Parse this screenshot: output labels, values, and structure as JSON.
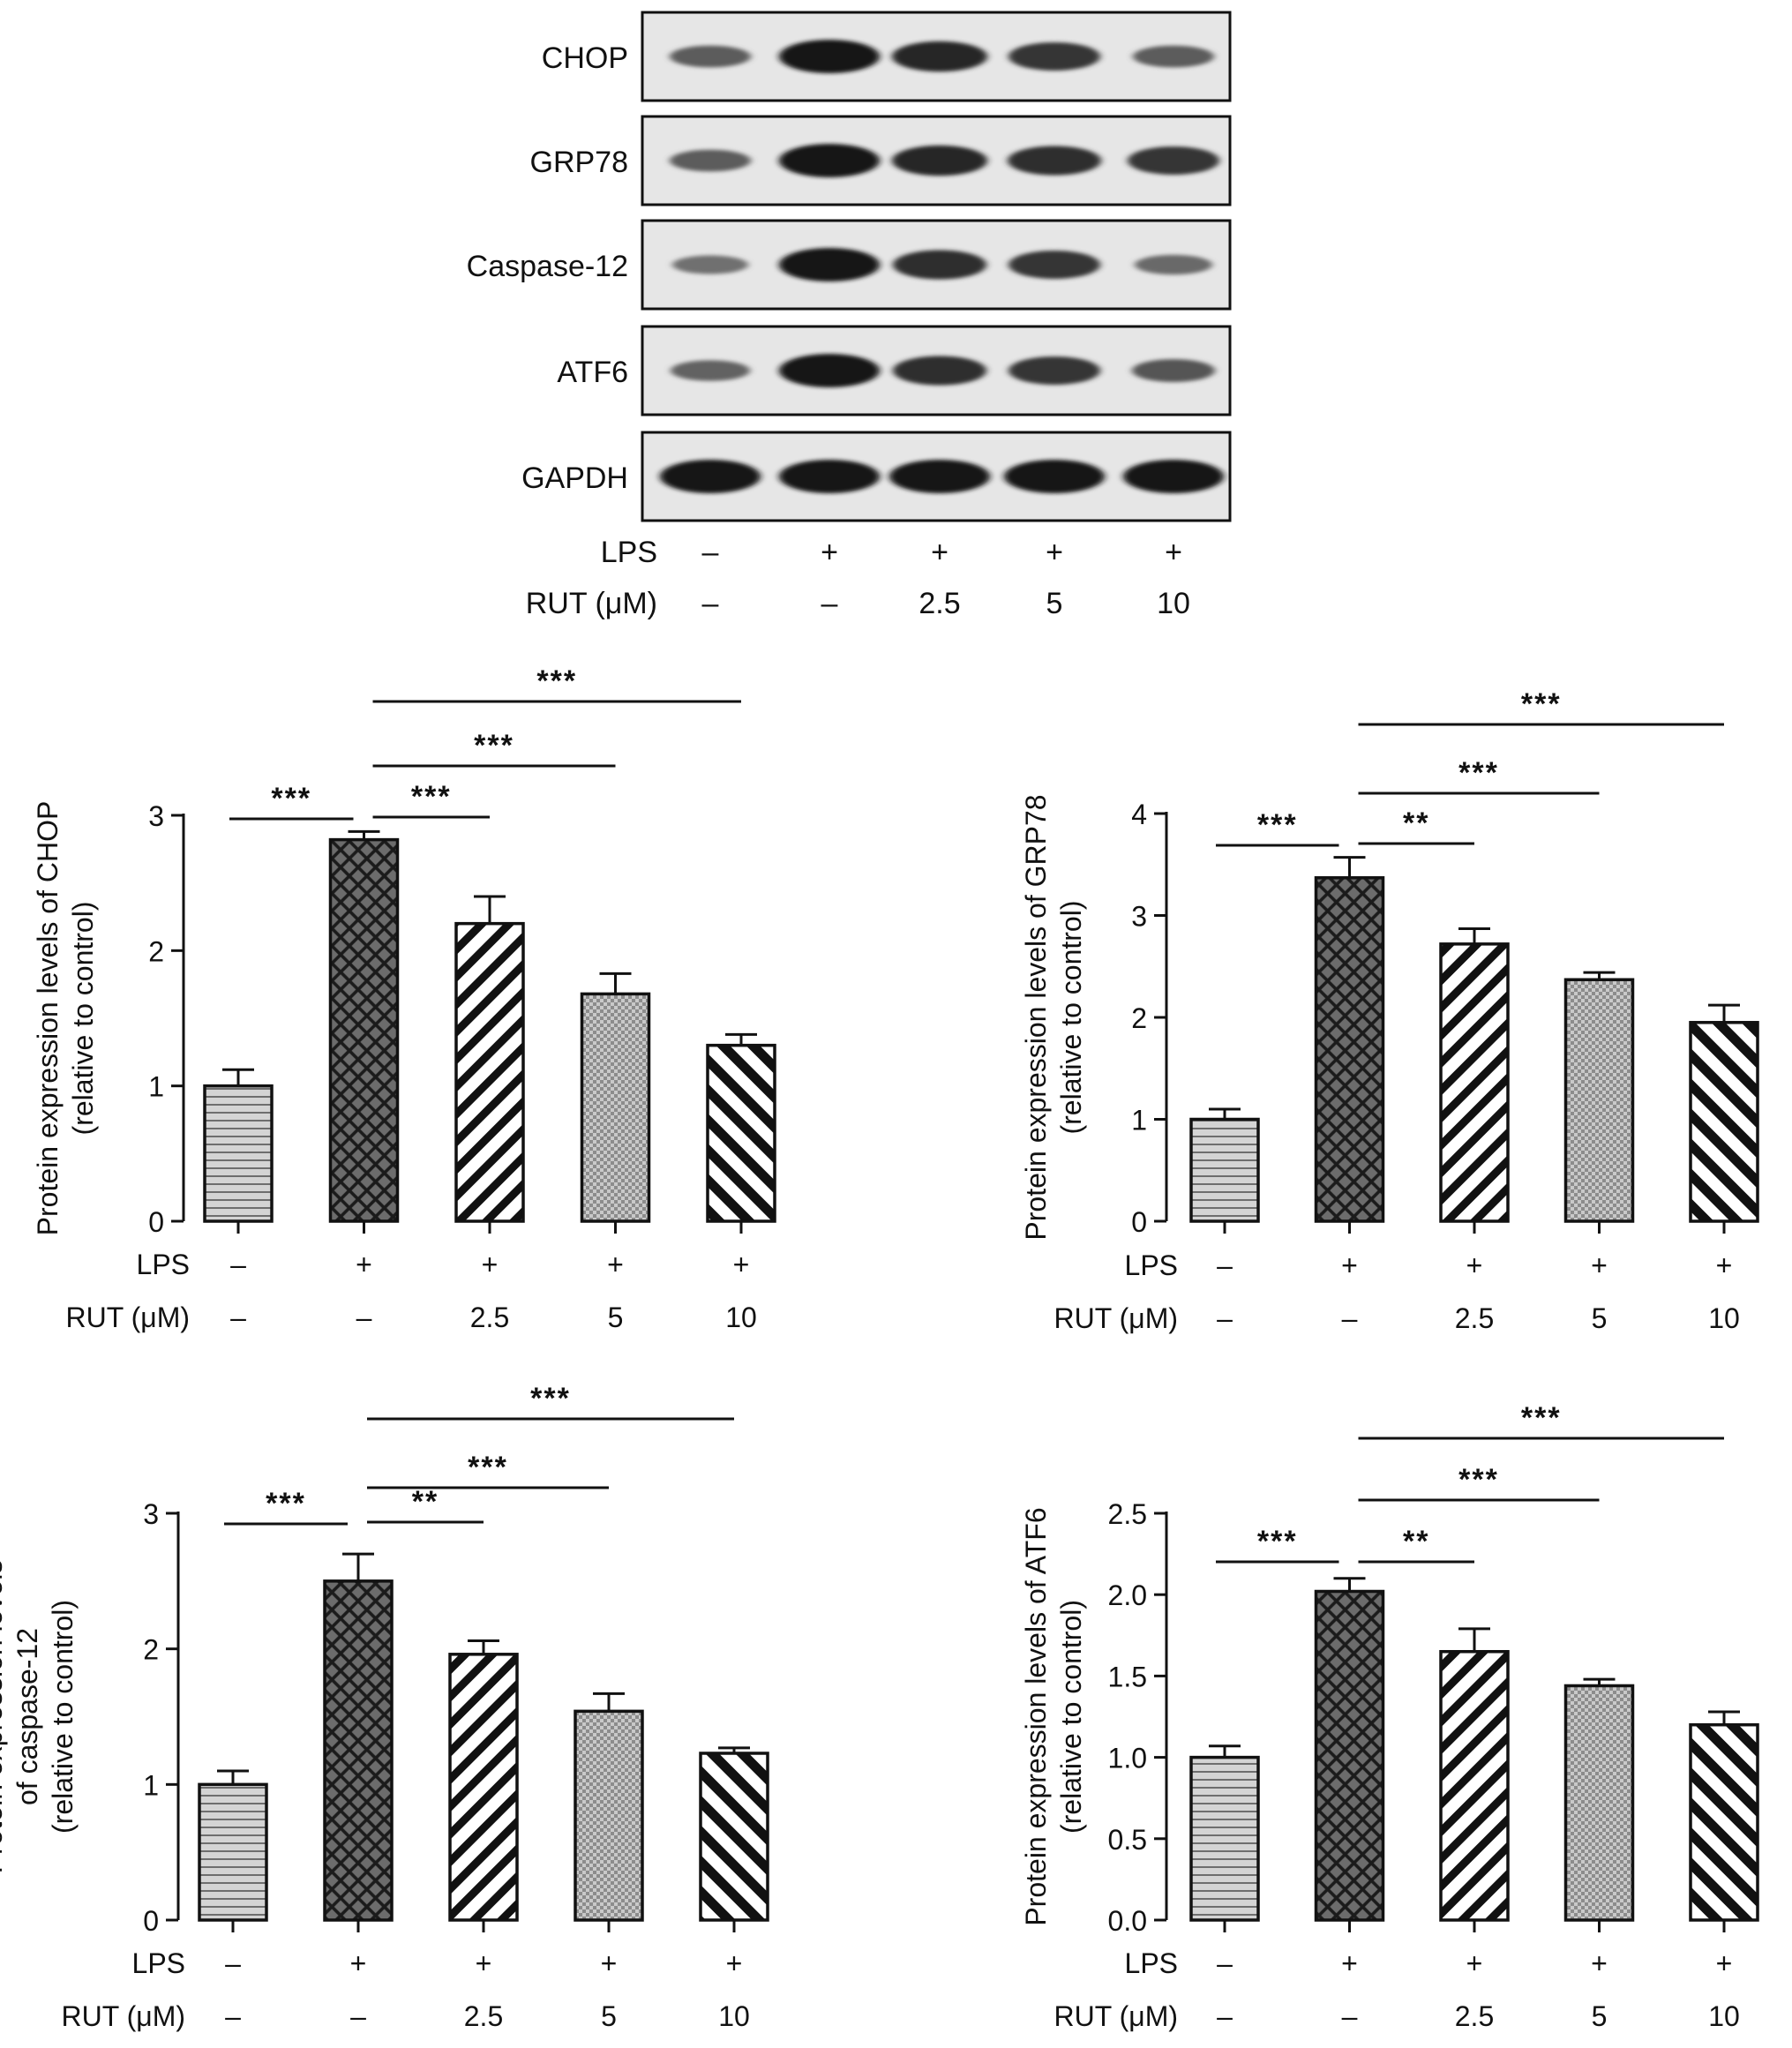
{
  "blot": {
    "rows": [
      {
        "label": "CHOP",
        "intensity": [
          0.45,
          1.0,
          0.85,
          0.75,
          0.45
        ]
      },
      {
        "label": "GRP78",
        "intensity": [
          0.45,
          1.0,
          0.85,
          0.8,
          0.75
        ]
      },
      {
        "label": "Caspase-12",
        "intensity": [
          0.3,
          1.0,
          0.8,
          0.75,
          0.35
        ]
      },
      {
        "label": "ATF6",
        "intensity": [
          0.4,
          1.0,
          0.8,
          0.75,
          0.5
        ]
      },
      {
        "label": "GAPDH",
        "intensity": [
          1.0,
          1.0,
          1.0,
          1.0,
          1.0
        ]
      }
    ],
    "lps_label": "LPS",
    "rut_label": "RUT (μM)",
    "lps": [
      "–",
      "+",
      "+",
      "+",
      "+"
    ],
    "rut": [
      "–",
      "–",
      "2.5",
      "5",
      "10"
    ]
  },
  "chart_data": [
    {
      "type": "bar",
      "ylabel": [
        "Protein expression levels of CHOP",
        "(relative to control)"
      ],
      "ylim": [
        0,
        3
      ],
      "yticks": [
        "0",
        "1",
        "2",
        "3"
      ],
      "values": [
        1.0,
        2.82,
        2.2,
        1.68,
        1.3
      ],
      "errors": [
        0.12,
        0.06,
        0.2,
        0.15,
        0.08
      ],
      "lps_label": "LPS",
      "rut_label": "RUT (μM)",
      "lps": [
        "–",
        "+",
        "+",
        "+",
        "+"
      ],
      "rut": [
        "–",
        "–",
        "2.5",
        "5",
        "10"
      ],
      "significance": [
        {
          "from": 0,
          "to": 1,
          "label": "***"
        },
        {
          "from": 1,
          "to": 2,
          "label": "***"
        },
        {
          "from": 1,
          "to": 3,
          "label": "***"
        },
        {
          "from": 1,
          "to": 4,
          "label": "***"
        }
      ]
    },
    {
      "type": "bar",
      "ylabel": [
        "Protein expression levels of GRP78",
        "(relative to control)"
      ],
      "ylim": [
        0,
        4
      ],
      "yticks": [
        "0",
        "1",
        "2",
        "3",
        "4"
      ],
      "values": [
        1.0,
        3.37,
        2.72,
        2.37,
        1.95
      ],
      "errors": [
        0.1,
        0.2,
        0.15,
        0.07,
        0.17
      ],
      "lps_label": "LPS",
      "rut_label": "RUT (μM)",
      "lps": [
        "–",
        "+",
        "+",
        "+",
        "+"
      ],
      "rut": [
        "–",
        "–",
        "2.5",
        "5",
        "10"
      ],
      "significance": [
        {
          "from": 0,
          "to": 1,
          "label": "***"
        },
        {
          "from": 1,
          "to": 2,
          "label": "**"
        },
        {
          "from": 1,
          "to": 3,
          "label": "***"
        },
        {
          "from": 1,
          "to": 4,
          "label": "***"
        }
      ]
    },
    {
      "type": "bar",
      "ylabel": [
        "Protein expression levels",
        "of caspase-12",
        "(relative to control)"
      ],
      "ylim": [
        0,
        3
      ],
      "yticks": [
        "0",
        "1",
        "2",
        "3"
      ],
      "values": [
        1.0,
        2.5,
        1.96,
        1.54,
        1.23
      ],
      "errors": [
        0.1,
        0.2,
        0.1,
        0.13,
        0.04
      ],
      "lps_label": "LPS",
      "rut_label": "RUT (μM)",
      "lps": [
        "–",
        "+",
        "+",
        "+",
        "+"
      ],
      "rut": [
        "–",
        "–",
        "2.5",
        "5",
        "10"
      ],
      "significance": [
        {
          "from": 0,
          "to": 1,
          "label": "***"
        },
        {
          "from": 1,
          "to": 2,
          "label": "**"
        },
        {
          "from": 1,
          "to": 3,
          "label": "***"
        },
        {
          "from": 1,
          "to": 4,
          "label": "***"
        }
      ]
    },
    {
      "type": "bar",
      "ylabel": [
        "Protein expression levels of ATF6",
        "(relative to control)"
      ],
      "ylim": [
        0,
        2.5
      ],
      "yticks": [
        "0.0",
        "0.5",
        "1.0",
        "1.5",
        "2.0",
        "2.5"
      ],
      "values": [
        1.0,
        2.02,
        1.65,
        1.44,
        1.2
      ],
      "errors": [
        0.07,
        0.08,
        0.14,
        0.04,
        0.08
      ],
      "lps_label": "LPS",
      "rut_label": "RUT (μM)",
      "lps": [
        "–",
        "+",
        "+",
        "+",
        "+"
      ],
      "rut": [
        "–",
        "–",
        "2.5",
        "5",
        "10"
      ],
      "significance": [
        {
          "from": 0,
          "to": 1,
          "label": "***"
        },
        {
          "from": 1,
          "to": 2,
          "label": "**"
        },
        {
          "from": 1,
          "to": 3,
          "label": "***"
        },
        {
          "from": 1,
          "to": 4,
          "label": "***"
        }
      ]
    }
  ]
}
